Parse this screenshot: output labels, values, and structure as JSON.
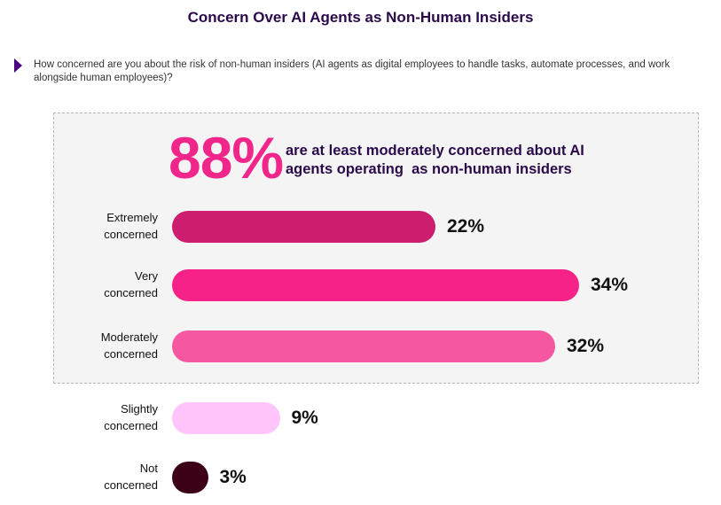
{
  "header": {
    "title": "Concern Over AI Agents as Non-Human Insiders",
    "question": "How concerned are you about the risk of non-human insiders (AI agents as digital employees to handle tasks, automate processes, and work alongside human employees)?"
  },
  "highlight": {
    "stat": "88%",
    "text_line1": "are at least moderately concerned about AI",
    "text_line2": "agents operating  as non-human insiders"
  },
  "chart_data": {
    "type": "bar",
    "orientation": "horizontal",
    "title": "Concern Over AI Agents as Non-Human Insiders",
    "xlabel": "",
    "ylabel": "",
    "categories": [
      [
        "Extremely",
        "concerned"
      ],
      [
        "Very",
        "concerned"
      ],
      [
        "Moderately",
        "concerned"
      ],
      [
        "Slightly",
        "concerned"
      ],
      [
        "Not",
        "concerned"
      ]
    ],
    "values": [
      22,
      34,
      32,
      9,
      3
    ],
    "value_labels": [
      "22%",
      "34%",
      "32%",
      "9%",
      "3%"
    ],
    "colors": [
      "#cc1d6e",
      "#f72287",
      "#f558a0",
      "#ffc5fb",
      "#3d0019"
    ],
    "xlim": [
      0,
      34
    ],
    "grid": false,
    "highlighted_group": [
      "Extremely concerned",
      "Very concerned",
      "Moderately concerned"
    ]
  }
}
